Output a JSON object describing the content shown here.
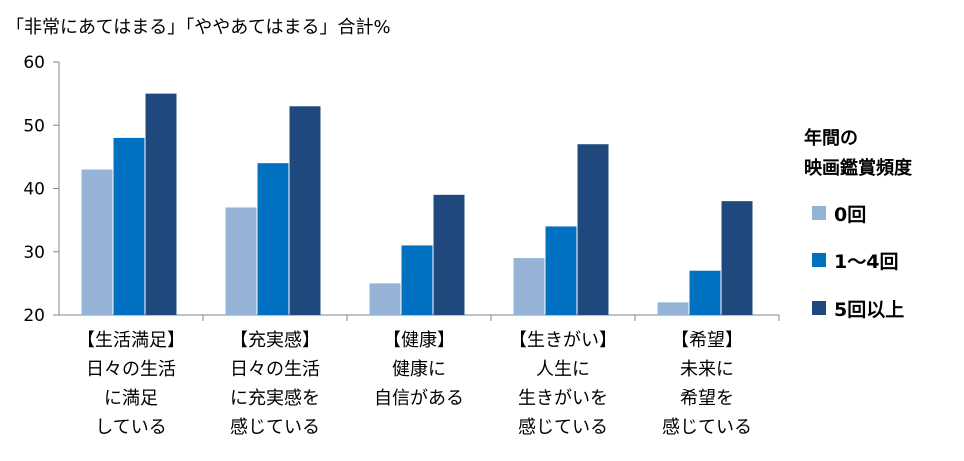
{
  "chart_data": {
    "type": "bar",
    "title": "「非常にあてはまる」「ややあてはまる」合計%",
    "categories": [
      {
        "lines": [
          "【生活満足】",
          "日々の生活",
          "に満足",
          "している"
        ]
      },
      {
        "lines": [
          "【充実感】",
          "日々の生活",
          "に充実感を",
          "感じている"
        ]
      },
      {
        "lines": [
          "【健康】",
          "健康に",
          "自信がある"
        ]
      },
      {
        "lines": [
          "【生きがい】",
          "人生に",
          "生きがいを",
          "感じている"
        ]
      },
      {
        "lines": [
          "【希望】",
          "未来に",
          "希望を",
          "感じている"
        ]
      }
    ],
    "series": [
      {
        "name": "0回",
        "color": "#95B3D7",
        "values": [
          43,
          37,
          25,
          29,
          22
        ]
      },
      {
        "name": "1～4回",
        "color": "#0070C0",
        "values": [
          48,
          44,
          31,
          34,
          27
        ]
      },
      {
        "name": "5回以上",
        "color": "#1F497D",
        "values": [
          55,
          53,
          39,
          47,
          38
        ]
      }
    ],
    "yticks": [
      20,
      30,
      40,
      50,
      60
    ],
    "ylim": [
      20,
      60
    ],
    "grid": false,
    "legend": {
      "title_lines": [
        "年間の",
        "映画鑑賞頻度"
      ],
      "placement": "right"
    }
  }
}
